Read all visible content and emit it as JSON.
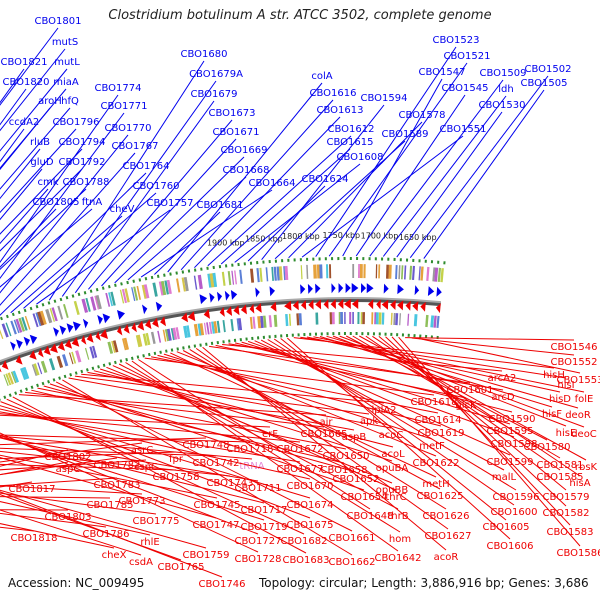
{
  "title": "Clostridium botulinum A str. ATCC 3502, complete genome",
  "footer": {
    "accession": "Accession: NC_009495",
    "summary": "Topology: circular; Length: 3,886,916 bp; Genes: 3,686"
  },
  "colors": {
    "forward": "#0000ee",
    "reverse": "#ee0000",
    "backbone": "#777777",
    "tick": "#2e8b2e",
    "rna_label": "#e58ad6"
  },
  "ruler_labels": [
    "1650 kbp",
    "1700 kbp",
    "1750 kbp",
    "1800 kbp",
    "1850 kbp",
    "1900 kbp"
  ],
  "forward_labels": [
    "CBO1801",
    "mutS",
    "CBO1821",
    "mutL",
    "CBO1820",
    "miaA",
    "aroH",
    "hfQ",
    "ccdA2",
    "CBO1796",
    "rluB",
    "CBO1794",
    "gluD",
    "CBO1792",
    "cmk",
    "CBO1788",
    "CBO1805",
    "ftnA",
    "CBO1774",
    "CBO1771",
    "CBO1770",
    "CBO1767",
    "CBO1764",
    "cheV",
    "CBO1760",
    "CBO1757",
    "CBO1680",
    "CBO1679A",
    "CBO1679",
    "CBO1673",
    "CBO1671",
    "CBO1669",
    "CBO1668",
    "CBO1664",
    "CBO1681",
    "colA",
    "CBO1616",
    "CBO1613",
    "CBO1612",
    "CBO1615",
    "CBO1608",
    "CBO1624",
    "CBO1594",
    "CBO1589",
    "CBO1578",
    "CBO1551",
    "CBO1523",
    "CBO1521",
    "CBO1547",
    "CBO1545",
    "CBO1509",
    "ldh",
    "CBO1530",
    "CBO1502",
    "CBO1505"
  ],
  "reverse_labels": [
    "CBO1817",
    "CBO1802",
    "aspC",
    "CBO1803",
    "CBO1818",
    "CBO1782",
    "CBO1783",
    "CBO1785",
    "CBO1786",
    "cheX",
    "asrC",
    "cspC",
    "CBO1773",
    "CBO1775",
    "rhlE",
    "csdA",
    "fpr",
    "CBO1758",
    "CBO1759",
    "CBO1765",
    "CBO1746",
    "CBO1748",
    "CBO1742",
    "CBO1743",
    "CBO1745",
    "CBO1747",
    "CBO1718",
    "tRNA",
    "CBO1711",
    "CBO1717",
    "CBO1719",
    "CBO1727",
    "CBO1728",
    "erF",
    "CBO1672",
    "CBO1677",
    "CBO1670",
    "CBO1674",
    "CBO1675",
    "CBO1682",
    "CBO1683",
    "air",
    "CBO1665",
    "CBO1658",
    "CBO1650",
    "CBO1652",
    "CBO1654",
    "CBO1661",
    "CBO1662",
    "aspB",
    "apk",
    "lplA2",
    "acoC",
    "acoL",
    "opuBA",
    "opuBB",
    "thrC",
    "thrB",
    "hom",
    "CBO1642",
    "CBO1648",
    "CBO1618",
    "CBO1614",
    "CBO1619",
    "metF",
    "metH",
    "CBO1622",
    "CBO1625",
    "CBO1626",
    "CBO1627",
    "acoR",
    "CBO1601",
    "glcK",
    "arcA2",
    "arcD",
    "CBO1590",
    "CBO1595",
    "CBO1598",
    "CBO1599",
    "malL",
    "CBO1596",
    "CBO1600",
    "CBO1605",
    "CBO1606",
    "hisH",
    "hisI",
    "hisD",
    "folE",
    "hisF",
    "deoR",
    "hisE",
    "deoC",
    "CBO1580",
    "CBO1581",
    "rbsK",
    "CBO1585",
    "hisA",
    "CBO1579",
    "CBO1582",
    "CBO1583",
    "CBO1586",
    "CBO1546",
    "CBO1552",
    "CBO1553"
  ]
}
